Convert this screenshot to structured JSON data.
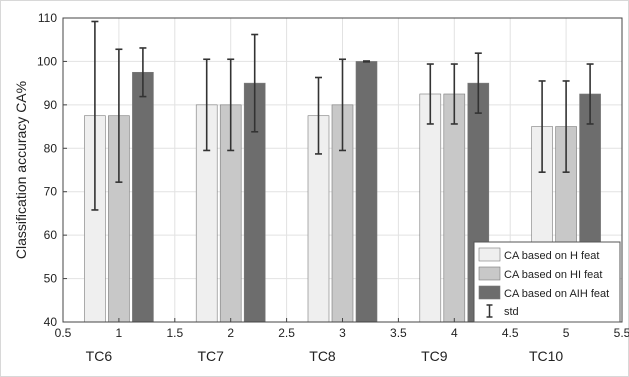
{
  "chart_data": {
    "type": "bar",
    "ylabel": "Classification accuracy CA%",
    "xlabel": "",
    "x_ticks": [
      "0.5",
      "1",
      "1.5",
      "2",
      "2.5",
      "3",
      "3.5",
      "4",
      "4.5",
      "5",
      "5.5"
    ],
    "y_ticks": [
      "40",
      "50",
      "60",
      "70",
      "80",
      "90",
      "100",
      "110"
    ],
    "xlim": [
      0.5,
      5.5
    ],
    "ylim": [
      40,
      110
    ],
    "grid": true,
    "categories": [
      "TC6",
      "TC7",
      "TC8",
      "TC9",
      "TC10"
    ],
    "category_positions": [
      1,
      2,
      3,
      4,
      5
    ],
    "series": [
      {
        "name": "CA based on H feat",
        "color": "#efefef",
        "values": [
          87.5,
          90,
          87.5,
          92.5,
          85
        ],
        "std": [
          21.7,
          10.5,
          8.8,
          6.9,
          10.5
        ]
      },
      {
        "name": "CA based on HI feat",
        "color": "#c8c8c8",
        "values": [
          87.5,
          90,
          90,
          92.5,
          85
        ],
        "std": [
          15.3,
          10.5,
          10.5,
          6.9,
          10.5
        ]
      },
      {
        "name": "CA based on AIH feat",
        "color": "#6d6d6d",
        "values": [
          97.5,
          95,
          100,
          95,
          92.5
        ],
        "std": [
          5.6,
          11.2,
          0.1,
          6.9,
          6.9
        ]
      }
    ],
    "legend": {
      "position": "bottom-right",
      "entries": [
        "CA based on H feat",
        "CA based on HI feat",
        "CA based on AIH feat",
        "std"
      ]
    }
  }
}
